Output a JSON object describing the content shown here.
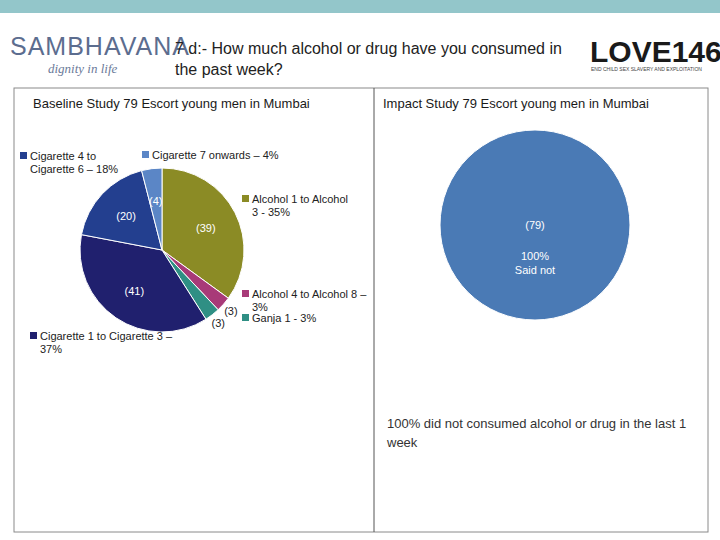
{
  "header": {
    "title": "7 d:-  How much alcohol or drug have you consumed in the past week?",
    "left_logo": "SAMBHAVANA",
    "left_logo_tagline": "dignity in life",
    "right_logo": "LOVE146",
    "right_logo_tagline": "END CHILD SEX SLAVERY AND EXPLOITATION"
  },
  "chart_data": [
    {
      "type": "pie",
      "title": "Baseline Study 79 Escort young men in Mumbai",
      "categories": [
        "Alcohol 1 to Alcohol 3 - 35%",
        "Alcohol 4 to Alcohol 8 – 3%",
        "Ganja 1 - 3%",
        "Cigarette 1 to Cigarette 3 – 37%",
        "Cigarette 4 to Cigarette 6 – 18%",
        "Cigarette 7 onwards – 4%"
      ],
      "values": [
        35,
        3,
        3,
        37,
        18,
        4
      ],
      "count_labels": [
        "(39)",
        "(3)",
        "(3)",
        "(41)",
        "(20)",
        "(4)"
      ],
      "colors": [
        "#8b8b25",
        "#a83a78",
        "#2f8f84",
        "#20206e",
        "#233f8f",
        "#5b86c6"
      ]
    },
    {
      "type": "pie",
      "title": "Impact Study 79 Escort young men in Mumbai",
      "categories": [
        "Said not"
      ],
      "values": [
        100
      ],
      "value_labels": [
        "100%"
      ],
      "data_labels": true,
      "count_labels": [
        "(79)"
      ],
      "colors": [
        "#4a7ab5"
      ],
      "annotation": "100% did not consumed alcohol or drug in the last 1 week"
    }
  ]
}
